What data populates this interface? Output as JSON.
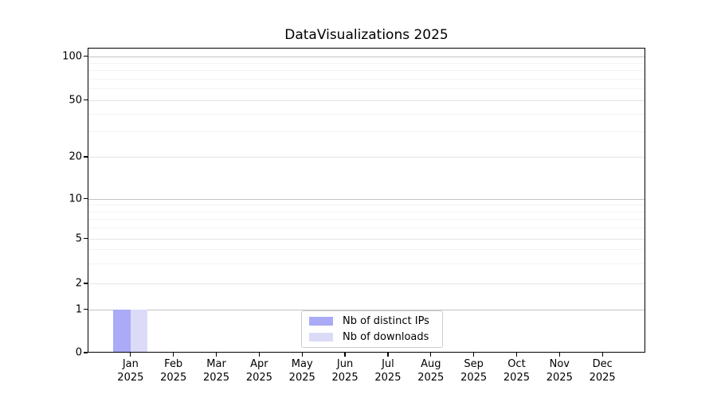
{
  "title": "DataVisualizations 2025",
  "chart_data": {
    "type": "bar",
    "title": "DataVisualizations 2025",
    "categories": [
      "Jan 2025",
      "Feb 2025",
      "Mar 2025",
      "Apr 2025",
      "May 2025",
      "Jun 2025",
      "Jul 2025",
      "Aug 2025",
      "Sep 2025",
      "Oct 2025",
      "Nov 2025",
      "Dec 2025"
    ],
    "x_months": [
      "Jan",
      "Feb",
      "Mar",
      "Apr",
      "May",
      "Jun",
      "Jul",
      "Aug",
      "Sep",
      "Oct",
      "Nov",
      "Dec"
    ],
    "x_year": "2025",
    "series": [
      {
        "name": "Nb of distinct IPs",
        "color": "#aaaaf7",
        "values": [
          1,
          0,
          0,
          0,
          0,
          0,
          0,
          0,
          0,
          0,
          0,
          0
        ]
      },
      {
        "name": "Nb of downloads",
        "color": "#dbdbf8",
        "values": [
          1,
          0,
          0,
          0,
          0,
          0,
          0,
          0,
          0,
          0,
          0,
          0
        ]
      }
    ],
    "yscale": "symlog",
    "ylim": [
      0,
      112
    ],
    "y_ticks": [
      0,
      1,
      2,
      5,
      10,
      20,
      50,
      100
    ],
    "y_minor_gridlines": [
      3,
      4,
      6,
      7,
      8,
      9,
      30,
      40,
      60,
      70,
      80,
      90
    ],
    "grid": "horizontal",
    "legend_position": "lower center",
    "colors": {
      "axis": "#000000",
      "grid_major": "#c3c3c3",
      "grid_mid": "#e4e4e4",
      "grid_minor": "#f2f2f2"
    }
  }
}
